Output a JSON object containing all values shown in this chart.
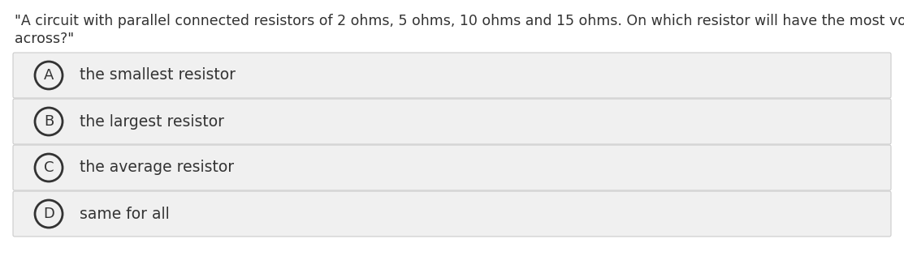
{
  "question_line1": "\"A circuit with parallel connected resistors of 2 ohms, 5 ohms, 10 ohms and 15 ohms. On which resistor will have the most voltage",
  "question_line2": "across?\"",
  "options": [
    {
      "label": "A",
      "text": "the smallest resistor"
    },
    {
      "label": "B",
      "text": "the largest resistor"
    },
    {
      "label": "C",
      "text": "the average resistor"
    },
    {
      "label": "D",
      "text": "same for all"
    }
  ],
  "bg_color": "#ffffff",
  "option_bg_color": "#f0f0f0",
  "option_border_color": "#cccccc",
  "text_color": "#333333",
  "circle_edge_color": "#333333",
  "question_fontsize": 12.5,
  "option_fontsize": 13.5,
  "label_fontsize": 13.0
}
